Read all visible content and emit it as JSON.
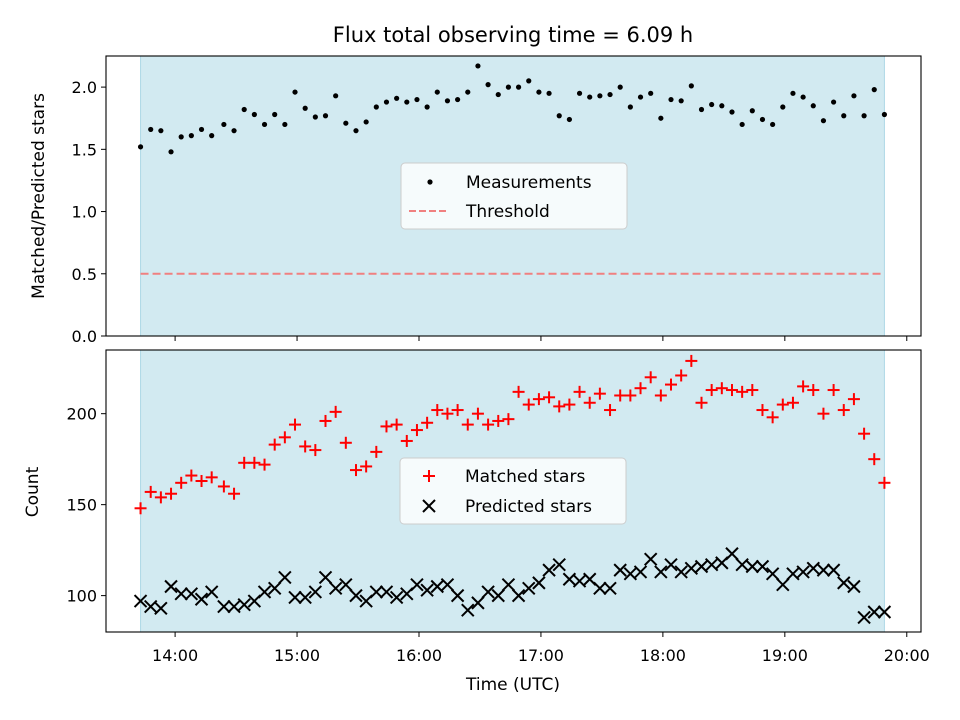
{
  "chart_data": [
    {
      "type": "scatter",
      "title": "Flux total observing time = 6.09 h",
      "xlabel": "",
      "ylabel": "Matched/Predicted stars",
      "ylim": [
        0,
        2.25
      ],
      "yticks": [
        0.0,
        0.5,
        1.0,
        1.5,
        2.0
      ],
      "ytick_labels": [
        "0.0",
        "0.5",
        "1.0",
        "1.5",
        "2.0"
      ],
      "shaded_span": {
        "start": "13:43",
        "end": "19:49",
        "color": "#add8e6"
      },
      "legend_position": "center",
      "series": [
        {
          "name": "Measurements",
          "kind": "scatter",
          "marker": "dot",
          "color": "#000000",
          "x": [
            "13:43",
            "13:48",
            "13:53",
            "13:58",
            "14:03",
            "14:08",
            "14:13",
            "14:18",
            "14:24",
            "14:29",
            "14:34",
            "14:39",
            "14:44",
            "14:49",
            "14:54",
            "14:59",
            "15:04",
            "15:09",
            "15:14",
            "15:19",
            "15:24",
            "15:29",
            "15:34",
            "15:39",
            "15:44",
            "15:49",
            "15:54",
            "15:59",
            "16:04",
            "16:09",
            "16:14",
            "16:19",
            "16:24",
            "16:29",
            "16:34",
            "16:39",
            "16:44",
            "16:49",
            "16:54",
            "16:59",
            "17:04",
            "17:09",
            "17:14",
            "17:19",
            "17:24",
            "17:29",
            "17:34",
            "17:39",
            "17:44",
            "17:49",
            "17:54",
            "17:59",
            "18:04",
            "18:09",
            "18:14",
            "18:19",
            "18:24",
            "18:29",
            "18:34",
            "18:39",
            "18:44",
            "18:49",
            "18:54",
            "18:59",
            "19:04",
            "19:09",
            "19:14",
            "19:19",
            "19:24",
            "19:29",
            "19:34",
            "19:39",
            "19:44",
            "19:49"
          ],
          "y": [
            1.52,
            1.66,
            1.65,
            1.48,
            1.6,
            1.61,
            1.66,
            1.61,
            1.7,
            1.65,
            1.82,
            1.78,
            1.7,
            1.78,
            1.7,
            1.96,
            1.83,
            1.76,
            1.77,
            1.93,
            1.71,
            1.65,
            1.72,
            1.84,
            1.88,
            1.91,
            1.88,
            1.9,
            1.84,
            1.96,
            1.89,
            1.9,
            1.96,
            2.17,
            2.02,
            1.94,
            2.0,
            2.0,
            2.05,
            1.96,
            1.95,
            1.77,
            1.74,
            1.95,
            1.92,
            1.93,
            1.94,
            2.0,
            1.84,
            1.92,
            1.95,
            1.75,
            1.9,
            1.89,
            2.01,
            1.82,
            1.86,
            1.85,
            1.8,
            1.7,
            1.81,
            1.74,
            1.7,
            1.84,
            1.95,
            1.92,
            1.85,
            1.73,
            1.88,
            1.77,
            1.93,
            1.77,
            1.98,
            1.78
          ]
        },
        {
          "name": "Threshold",
          "kind": "line",
          "style": "dashed",
          "color": "#f08080",
          "x": [
            "13:43",
            "19:49"
          ],
          "y": [
            0.5,
            0.5
          ]
        }
      ]
    },
    {
      "type": "scatter",
      "title": "",
      "xlabel": "Time (UTC)",
      "ylabel": "Count",
      "ylim": [
        80,
        235
      ],
      "yticks": [
        100,
        150,
        200
      ],
      "ytick_labels": [
        "100",
        "150",
        "200"
      ],
      "xlim": [
        "13:26",
        "20:07"
      ],
      "xticks": [
        "14:00",
        "15:00",
        "16:00",
        "17:00",
        "18:00",
        "19:00",
        "20:00"
      ],
      "shaded_span": {
        "start": "13:43",
        "end": "19:49",
        "color": "#add8e6"
      },
      "legend_position": "center",
      "series": [
        {
          "name": "Matched stars",
          "kind": "scatter",
          "marker": "plus",
          "color": "#ff0000",
          "x": [
            "13:43",
            "13:48",
            "13:53",
            "13:58",
            "14:03",
            "14:08",
            "14:13",
            "14:18",
            "14:24",
            "14:29",
            "14:34",
            "14:39",
            "14:44",
            "14:49",
            "14:54",
            "14:59",
            "15:04",
            "15:09",
            "15:14",
            "15:19",
            "15:24",
            "15:29",
            "15:34",
            "15:39",
            "15:44",
            "15:49",
            "15:54",
            "15:59",
            "16:04",
            "16:09",
            "16:14",
            "16:19",
            "16:24",
            "16:29",
            "16:34",
            "16:39",
            "16:44",
            "16:49",
            "16:54",
            "16:59",
            "17:04",
            "17:09",
            "17:14",
            "17:19",
            "17:24",
            "17:29",
            "17:34",
            "17:39",
            "17:44",
            "17:49",
            "17:54",
            "17:59",
            "18:04",
            "18:09",
            "18:14",
            "18:19",
            "18:24",
            "18:29",
            "18:34",
            "18:39",
            "18:44",
            "18:49",
            "18:54",
            "18:59",
            "19:04",
            "19:09",
            "19:14",
            "19:19",
            "19:24",
            "19:29",
            "19:34",
            "19:39",
            "19:44",
            "19:49"
          ],
          "y": [
            148,
            157,
            154,
            156,
            162,
            166,
            163,
            165,
            160,
            156,
            173,
            173,
            172,
            183,
            187,
            194,
            182,
            180,
            196,
            201,
            184,
            169,
            171,
            179,
            193,
            194,
            185,
            191,
            195,
            202,
            200,
            202,
            194,
            200,
            194,
            196,
            197,
            212,
            205,
            208,
            209,
            204,
            205,
            212,
            206,
            211,
            202,
            210,
            210,
            214,
            220,
            210,
            216,
            221,
            229,
            206,
            213,
            214,
            213,
            212,
            213,
            202,
            198,
            205,
            206,
            215,
            213,
            200,
            213,
            202,
            208,
            189,
            175,
            162
          ]
        },
        {
          "name": "Predicted stars",
          "kind": "scatter",
          "marker": "x",
          "color": "#000000",
          "x": [
            "13:43",
            "13:48",
            "13:53",
            "13:58",
            "14:03",
            "14:08",
            "14:13",
            "14:18",
            "14:24",
            "14:29",
            "14:34",
            "14:39",
            "14:44",
            "14:49",
            "14:54",
            "14:59",
            "15:04",
            "15:09",
            "15:14",
            "15:19",
            "15:24",
            "15:29",
            "15:34",
            "15:39",
            "15:44",
            "15:49",
            "15:54",
            "15:59",
            "16:04",
            "16:09",
            "16:14",
            "16:19",
            "16:24",
            "16:29",
            "16:34",
            "16:39",
            "16:44",
            "16:49",
            "16:54",
            "16:59",
            "17:04",
            "17:09",
            "17:14",
            "17:19",
            "17:24",
            "17:29",
            "17:34",
            "17:39",
            "17:44",
            "17:49",
            "17:54",
            "17:59",
            "18:04",
            "18:09",
            "18:14",
            "18:19",
            "18:24",
            "18:29",
            "18:34",
            "18:39",
            "18:44",
            "18:49",
            "18:54",
            "18:59",
            "19:04",
            "19:09",
            "19:14",
            "19:19",
            "19:24",
            "19:29",
            "19:34",
            "19:39",
            "19:44",
            "19:49"
          ],
          "y": [
            97,
            94,
            93,
            105,
            101,
            101,
            98,
            102,
            94,
            94,
            95,
            97,
            102,
            104,
            110,
            99,
            99,
            102,
            110,
            104,
            106,
            100,
            97,
            102,
            102,
            99,
            101,
            106,
            103,
            105,
            106,
            100,
            92,
            96,
            102,
            100,
            106,
            100,
            104,
            107,
            114,
            117,
            109,
            108,
            109,
            104,
            104,
            114,
            112,
            113,
            120,
            113,
            117,
            113,
            115,
            116,
            117,
            118,
            123,
            117,
            116,
            116,
            112,
            106,
            112,
            113,
            115,
            114,
            114,
            107,
            105,
            88,
            91,
            91
          ]
        }
      ]
    }
  ]
}
